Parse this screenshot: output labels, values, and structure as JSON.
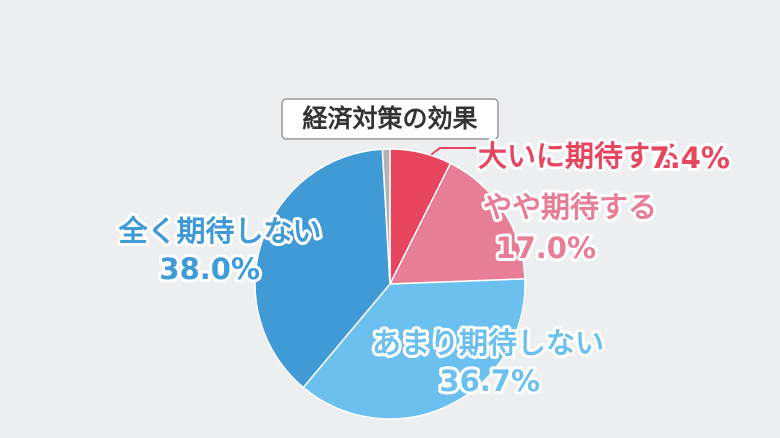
{
  "chart_data": {
    "type": "pie",
    "title": "経済対策の効果",
    "categories": [
      "大いに期待する",
      "やや期待する",
      "あまり期待しない",
      "全く期待しない",
      null
    ],
    "values": [
      7.4,
      17.0,
      36.7,
      38.0,
      0.9
    ],
    "value_labels": [
      "7.4%",
      "17.0%",
      "36.7%",
      "38.0%",
      null
    ],
    "colors": [
      "#e8465f",
      "#e87d96",
      "#6cc0f0",
      "#3f9ad6",
      "#b4b4b4"
    ]
  }
}
